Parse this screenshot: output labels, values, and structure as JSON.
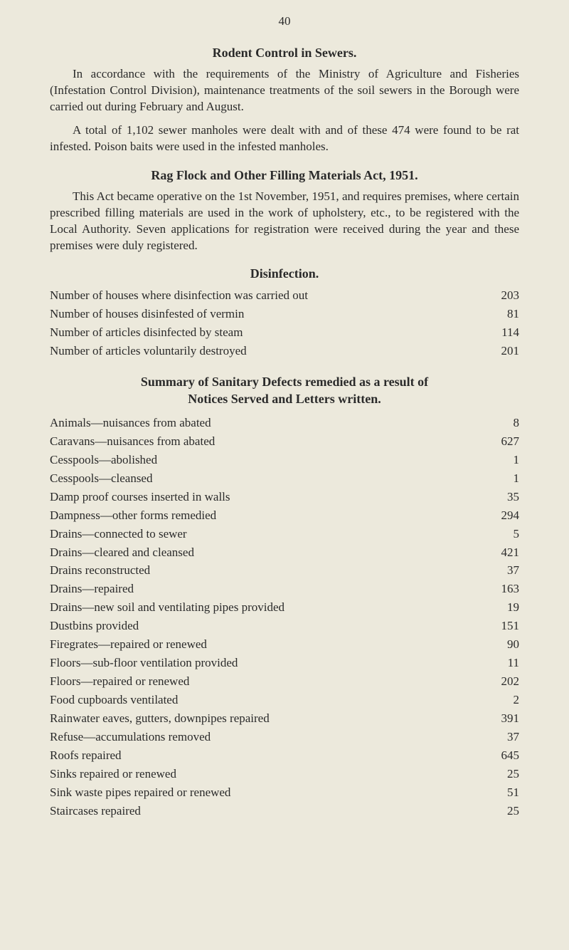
{
  "pageNumber": "40",
  "section1": {
    "heading": "Rodent Control in Sewers.",
    "para1": "In accordance with the requirements of the Ministry of Agriculture and Fisheries (Infestation Control Division), maintenance treatments of the soil sewers in the Borough were carried out during February and August.",
    "para2": "A total of 1,102 sewer manholes were dealt with and of these 474 were found to be rat infested. Poison baits were used in the infested manholes."
  },
  "section2": {
    "heading": "Rag Flock and Other Filling Materials Act, 1951.",
    "para1": "This Act became operative on the 1st November, 1951, and requires premises, where certain prescribed filling materials are used in the work of upholstery, etc., to be registered with the Local Authority. Seven applications for registration were received during the year and these premises were duly registered."
  },
  "section3": {
    "heading": "Disinfection.",
    "rows": [
      {
        "label": "Number of houses where disinfection was carried out",
        "value": "203"
      },
      {
        "label": "Number of houses disinfested of vermin",
        "value": "81"
      },
      {
        "label": "Number of articles disinfected by steam",
        "value": "114"
      },
      {
        "label": "Number of articles voluntarily destroyed",
        "value": "201"
      }
    ]
  },
  "section4": {
    "headingLine1": "Summary of Sanitary Defects remedied as a result of",
    "headingLine2": "Notices Served and Letters written.",
    "rows": [
      {
        "label": "Animals—nuisances from abated",
        "value": "8"
      },
      {
        "label": "Caravans—nuisances from abated",
        "value": "627"
      },
      {
        "label": "Cesspools—abolished",
        "value": "1"
      },
      {
        "label": "Cesspools—cleansed",
        "value": "1"
      },
      {
        "label": "Damp proof courses inserted in walls",
        "value": "35"
      },
      {
        "label": "Dampness—other forms remedied",
        "value": "294"
      },
      {
        "label": "Drains—connected to sewer",
        "value": "5"
      },
      {
        "label": "Drains—cleared and cleansed",
        "value": "421"
      },
      {
        "label": "Drains reconstructed",
        "value": "37"
      },
      {
        "label": "Drains—repaired",
        "value": "163"
      },
      {
        "label": "Drains—new soil and ventilating pipes provided",
        "value": "19"
      },
      {
        "label": "Dustbins provided",
        "value": "151"
      },
      {
        "label": "Firegrates—repaired or renewed",
        "value": "90"
      },
      {
        "label": "Floors—sub-floor ventilation provided",
        "value": "11"
      },
      {
        "label": "Floors—repaired or renewed",
        "value": "202"
      },
      {
        "label": "Food cupboards ventilated",
        "value": "2"
      },
      {
        "label": "Rainwater eaves, gutters, downpipes repaired",
        "value": "391"
      },
      {
        "label": "Refuse—accumulations removed",
        "value": "37"
      },
      {
        "label": "Roofs repaired",
        "value": "645"
      },
      {
        "label": "Sinks repaired or renewed",
        "value": "25"
      },
      {
        "label": "Sink waste pipes repaired or renewed",
        "value": "51"
      },
      {
        "label": "Staircases repaired",
        "value": "25"
      }
    ]
  },
  "colors": {
    "background": "#ece9dc",
    "text": "#2a2a2a"
  }
}
